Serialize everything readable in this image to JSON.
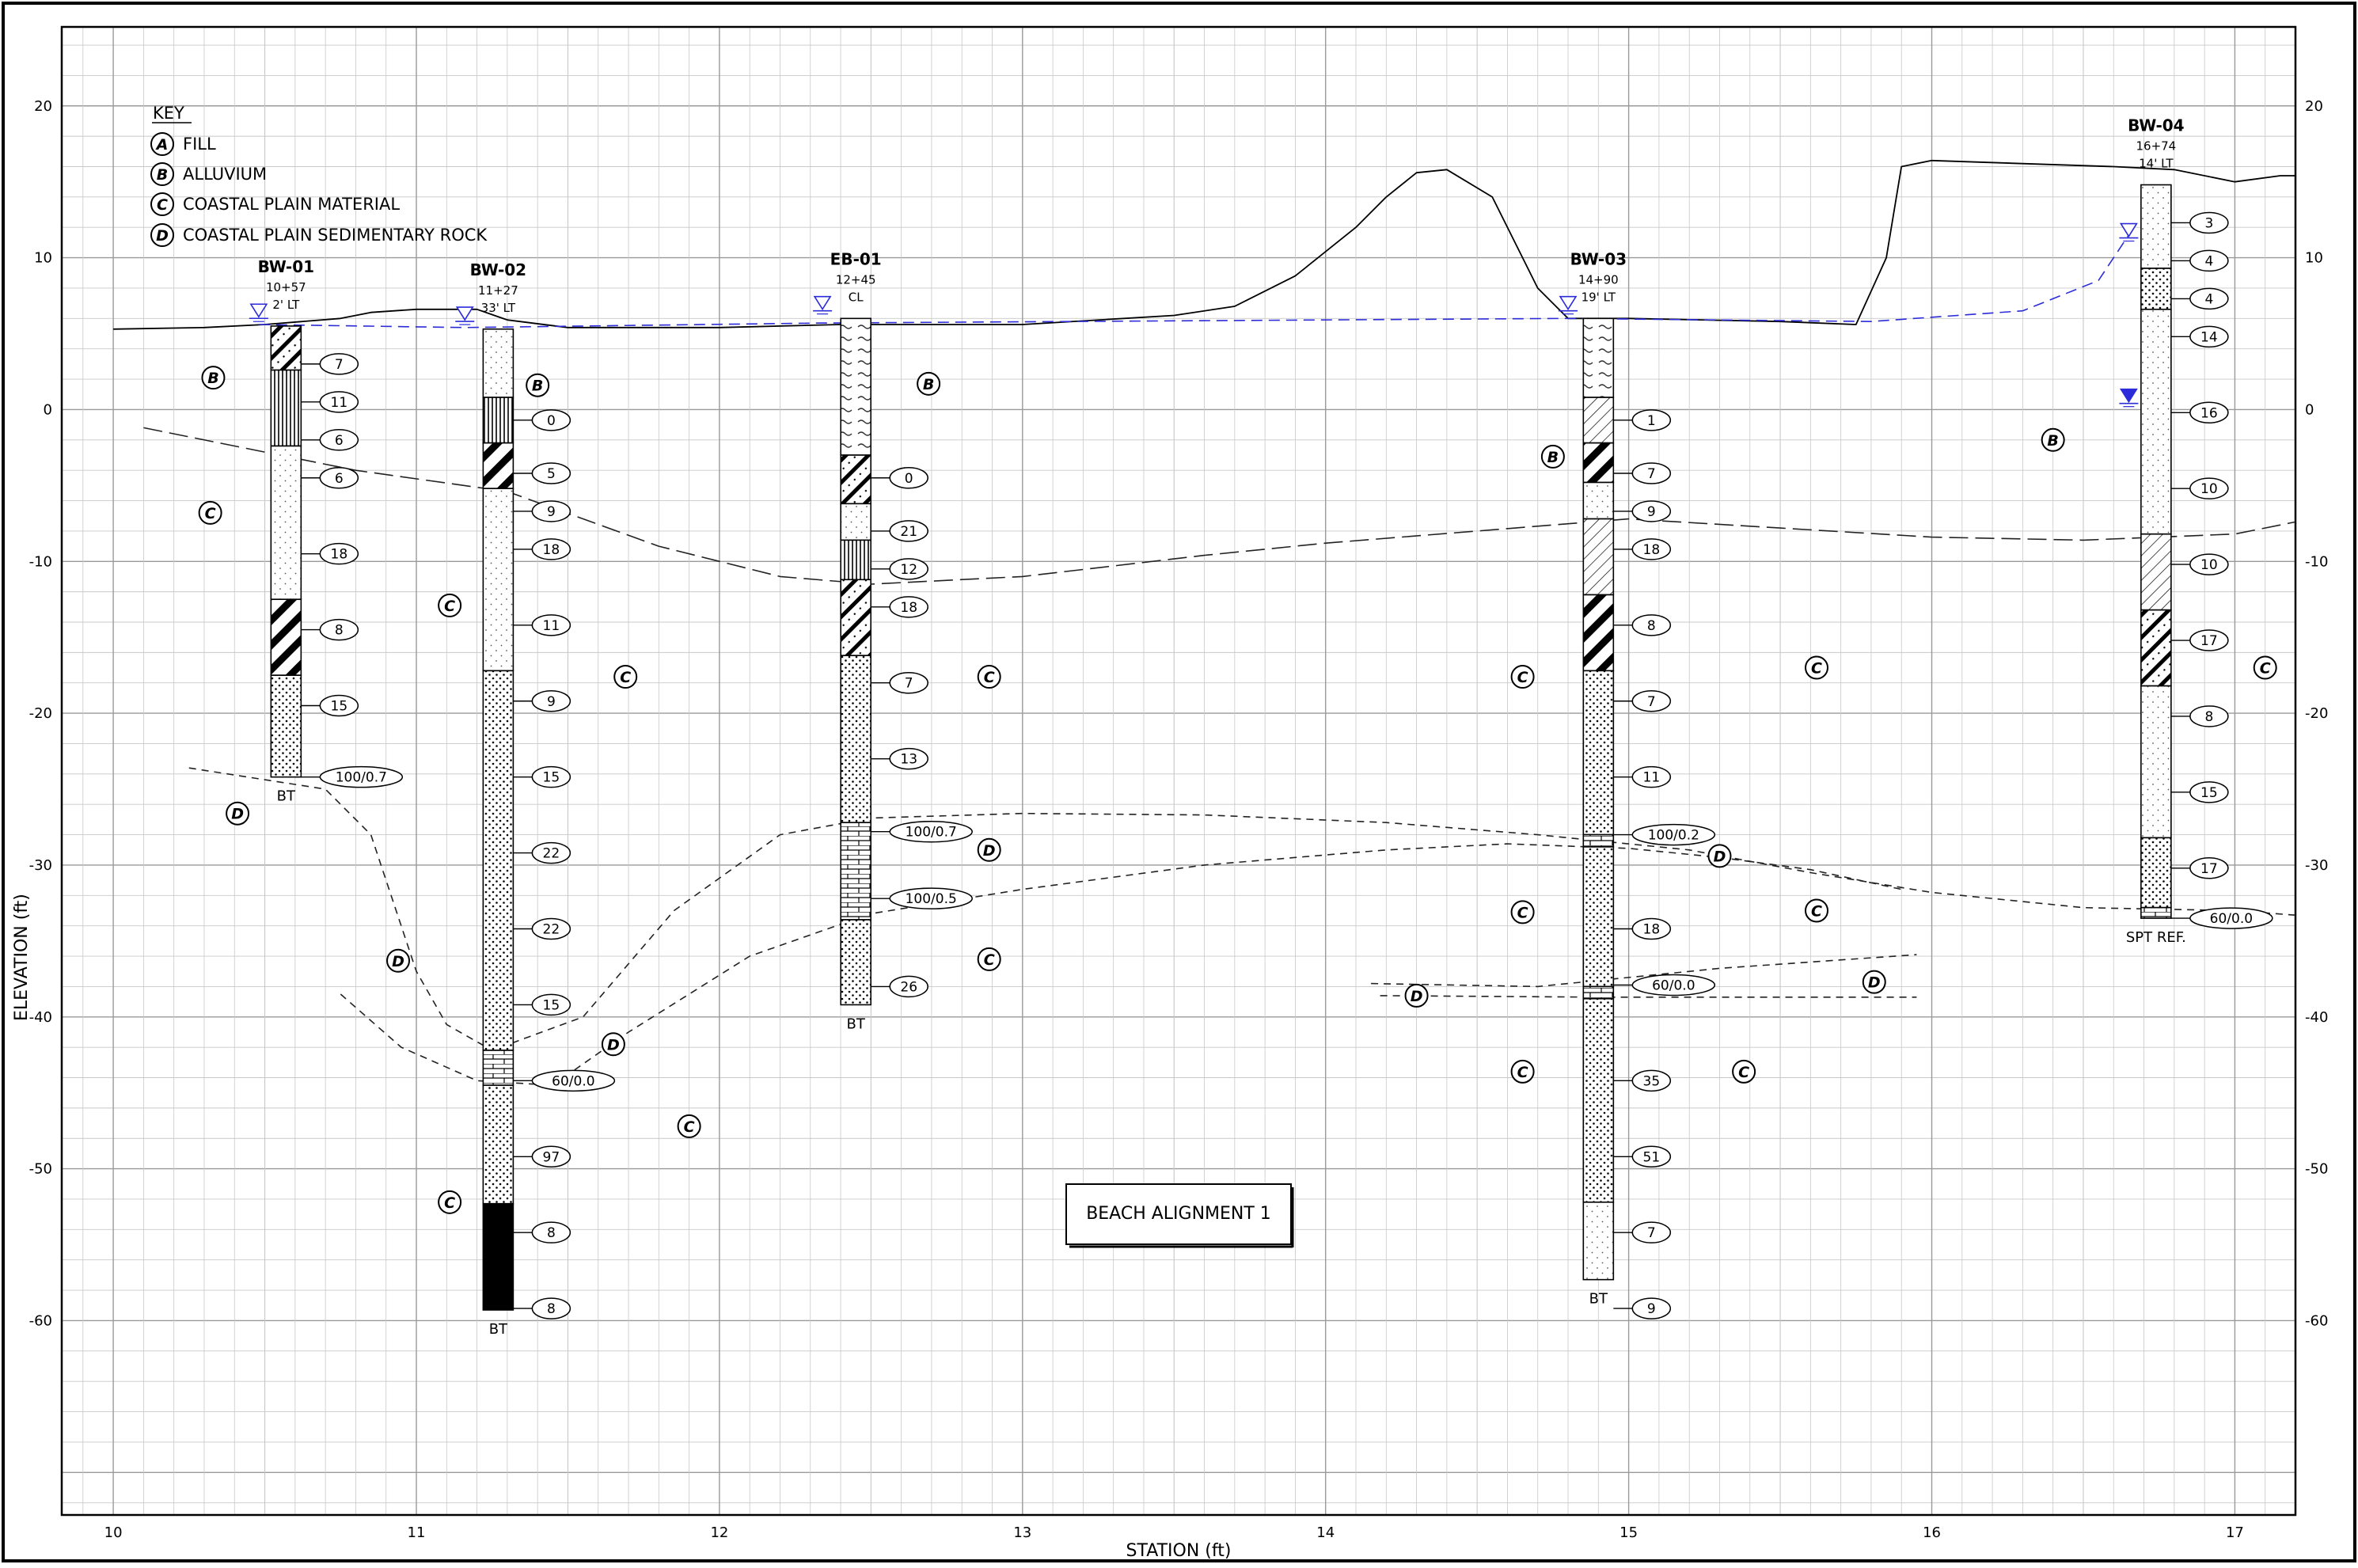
{
  "key": {
    "title": "KEY",
    "items": [
      {
        "letter": "A",
        "label": "FILL"
      },
      {
        "letter": "B",
        "label": "ALLUVIUM"
      },
      {
        "letter": "C",
        "label": "COASTAL PLAIN MATERIAL"
      },
      {
        "letter": "D",
        "label": "COASTAL PLAIN SEDIMENTARY ROCK"
      }
    ]
  },
  "axes": {
    "xlabel": "STATION (ft)",
    "ylabel": "ELEVATION (ft)",
    "xticks": [
      "10",
      "11",
      "12",
      "13",
      "14",
      "15",
      "16",
      "17"
    ],
    "yticks": [
      "20",
      "10",
      "0",
      "-10",
      "-20",
      "-30",
      "-40",
      "-50",
      "-60"
    ]
  },
  "title_box": "BEACH ALIGNMENT 1",
  "colors": {
    "line": "#000000",
    "water_table": "#2b2bd9",
    "grid": "#c8c8c8"
  },
  "chart_data": {
    "type": "profile",
    "xlim": [
      9.83,
      17.2
    ],
    "ylim": [
      -72.8,
      25.2
    ],
    "ground_surface": [
      [
        10.0,
        5.3
      ],
      [
        10.3,
        5.4
      ],
      [
        10.5,
        5.6
      ],
      [
        10.75,
        6.0
      ],
      [
        10.85,
        6.4
      ],
      [
        11.0,
        6.6
      ],
      [
        11.2,
        6.6
      ],
      [
        11.3,
        5.9
      ],
      [
        11.5,
        5.4
      ],
      [
        12.0,
        5.4
      ],
      [
        12.4,
        5.6
      ],
      [
        12.6,
        5.6
      ],
      [
        13.0,
        5.6
      ],
      [
        13.5,
        6.2
      ],
      [
        13.7,
        6.8
      ],
      [
        13.9,
        8.8
      ],
      [
        14.1,
        12.0
      ],
      [
        14.2,
        14.0
      ],
      [
        14.3,
        15.6
      ],
      [
        14.4,
        15.8
      ],
      [
        14.55,
        14.0
      ],
      [
        14.7,
        8.0
      ],
      [
        14.8,
        6.0
      ],
      [
        15.0,
        6.0
      ],
      [
        15.5,
        5.8
      ],
      [
        15.75,
        5.6
      ],
      [
        15.85,
        10.0
      ],
      [
        15.9,
        16.0
      ],
      [
        16.0,
        16.4
      ],
      [
        16.3,
        16.2
      ],
      [
        16.6,
        16.0
      ],
      [
        16.8,
        15.8
      ],
      [
        17.0,
        15.0
      ],
      [
        17.15,
        15.4
      ],
      [
        17.2,
        15.4
      ]
    ],
    "water_table": [
      [
        10.48,
        5.6
      ],
      [
        11.16,
        5.4
      ],
      [
        12.34,
        5.7
      ],
      [
        14.8,
        6.0
      ],
      [
        15.8,
        5.8
      ],
      [
        16.3,
        6.5
      ],
      [
        16.55,
        8.5
      ],
      [
        16.65,
        11.5
      ]
    ],
    "unit_boundaries": [
      {
        "dash": "long",
        "points": [
          [
            10.1,
            -1.2
          ],
          [
            10.8,
            -4.0
          ],
          [
            11.3,
            -5.4
          ],
          [
            11.8,
            -9.0
          ],
          [
            12.2,
            -11.0
          ],
          [
            12.5,
            -11.5
          ],
          [
            13.0,
            -11.0
          ],
          [
            13.6,
            -9.6
          ],
          [
            14.0,
            -8.8
          ],
          [
            14.5,
            -8.0
          ],
          [
            15.0,
            -7.2
          ],
          [
            15.5,
            -7.8
          ],
          [
            16.0,
            -8.4
          ],
          [
            16.5,
            -8.6
          ],
          [
            17.0,
            -8.2
          ],
          [
            17.2,
            -7.4
          ]
        ]
      },
      {
        "dash": "short",
        "points": [
          [
            10.25,
            -23.6
          ],
          [
            10.7,
            -25.0
          ],
          [
            10.85,
            -28.0
          ],
          [
            11.0,
            -37.0
          ],
          [
            11.1,
            -40.5
          ],
          [
            11.25,
            -42.2
          ],
          [
            11.55,
            -40.0
          ],
          [
            11.85,
            -33.0
          ],
          [
            12.2,
            -28.0
          ],
          [
            12.5,
            -26.9
          ],
          [
            13.0,
            -26.6
          ],
          [
            13.6,
            -26.7
          ],
          [
            14.2,
            -27.2
          ],
          [
            14.7,
            -28.0
          ],
          [
            15.2,
            -29.0
          ],
          [
            15.6,
            -30.5
          ],
          [
            16.0,
            -31.8
          ],
          [
            16.5,
            -32.8
          ],
          [
            17.0,
            -33.0
          ],
          [
            17.2,
            -33.3
          ]
        ]
      },
      {
        "dash": "short",
        "points": [
          [
            10.75,
            -38.5
          ],
          [
            10.95,
            -42.0
          ],
          [
            11.2,
            -44.2
          ],
          [
            11.45,
            -44.5
          ],
          [
            11.7,
            -41.0
          ],
          [
            12.1,
            -36.0
          ],
          [
            12.5,
            -33.2
          ],
          [
            13.0,
            -31.6
          ],
          [
            13.6,
            -30.0
          ],
          [
            14.2,
            -29.0
          ],
          [
            14.6,
            -28.6
          ],
          [
            15.0,
            -28.9
          ],
          [
            15.3,
            -29.5
          ],
          [
            15.6,
            -30.3
          ],
          [
            15.9,
            -31.6
          ]
        ]
      },
      {
        "dash": "short",
        "points": [
          [
            14.15,
            -37.8
          ],
          [
            14.7,
            -38.0
          ],
          [
            15.3,
            -36.8
          ],
          [
            15.95,
            -35.9
          ]
        ]
      },
      {
        "dash": "short",
        "points": [
          [
            14.18,
            -38.6
          ],
          [
            14.9,
            -38.7
          ],
          [
            15.95,
            -38.7
          ]
        ]
      }
    ],
    "unit_labels": [
      {
        "letter": "B",
        "x": 10.33,
        "y": 2.1
      },
      {
        "letter": "C",
        "x": 10.32,
        "y": -6.8
      },
      {
        "letter": "D",
        "x": 10.41,
        "y": -26.6
      },
      {
        "letter": "B",
        "x": 11.4,
        "y": 1.6
      },
      {
        "letter": "C",
        "x": 11.11,
        "y": -12.9
      },
      {
        "letter": "D",
        "x": 10.94,
        "y": -36.3
      },
      {
        "letter": "D",
        "x": 11.65,
        "y": -41.8
      },
      {
        "letter": "C",
        "x": 11.11,
        "y": -52.2
      },
      {
        "letter": "C",
        "x": 11.69,
        "y": -17.6
      },
      {
        "letter": "C",
        "x": 11.9,
        "y": -47.2
      },
      {
        "letter": "B",
        "x": 12.69,
        "y": 1.7
      },
      {
        "letter": "C",
        "x": 12.89,
        "y": -17.6
      },
      {
        "letter": "D",
        "x": 12.89,
        "y": -29.0
      },
      {
        "letter": "C",
        "x": 12.89,
        "y": -36.2
      },
      {
        "letter": "B",
        "x": 14.75,
        "y": -3.1
      },
      {
        "letter": "C",
        "x": 14.65,
        "y": -17.6
      },
      {
        "letter": "C",
        "x": 14.65,
        "y": -33.1
      },
      {
        "letter": "C",
        "x": 14.65,
        "y": -43.6
      },
      {
        "letter": "D",
        "x": 14.3,
        "y": -38.6
      },
      {
        "letter": "D",
        "x": 15.3,
        "y": -29.4
      },
      {
        "letter": "C",
        "x": 15.62,
        "y": -17.0
      },
      {
        "letter": "C",
        "x": 15.62,
        "y": -33.0
      },
      {
        "letter": "C",
        "x": 15.38,
        "y": -43.6
      },
      {
        "letter": "D",
        "x": 15.81,
        "y": -37.7
      },
      {
        "letter": "B",
        "x": 16.4,
        "y": -2.0
      },
      {
        "letter": "C",
        "x": 17.1,
        "y": -17.0
      }
    ],
    "borings": [
      {
        "name": "BW-01",
        "station": "10+57",
        "offset": "2' LT",
        "x": 10.57,
        "top": 5.5,
        "bottom": -24.2,
        "end_label": "BT",
        "wt": 10.48,
        "layers": [
          {
            "from": 5.5,
            "to": 2.6,
            "pattern": "hatch-dot"
          },
          {
            "from": 2.6,
            "to": -2.4,
            "pattern": "vert"
          },
          {
            "from": -2.4,
            "to": -12.5,
            "pattern": "dots-light"
          },
          {
            "from": -12.5,
            "to": -17.5,
            "pattern": "hatch-bold"
          },
          {
            "from": -17.5,
            "to": -24.2,
            "pattern": "dots"
          }
        ],
        "spt": [
          {
            "y": 3.0,
            "v": "7"
          },
          {
            "y": 0.5,
            "v": "11"
          },
          {
            "y": -2.0,
            "v": "6"
          },
          {
            "y": -4.5,
            "v": "6"
          },
          {
            "y": -9.5,
            "v": "18"
          },
          {
            "y": -14.5,
            "v": "8"
          },
          {
            "y": -19.5,
            "v": "15"
          },
          {
            "y": -24.2,
            "v": "100/0.7"
          }
        ]
      },
      {
        "name": "BW-02",
        "station": "11+27",
        "offset": "33' LT",
        "x": 11.27,
        "top": 5.3,
        "bottom": -59.3,
        "end_label": "BT",
        "wt": 11.16,
        "layers": [
          {
            "from": 5.3,
            "to": 0.8,
            "pattern": "dots-light"
          },
          {
            "from": 0.8,
            "to": -2.2,
            "pattern": "vert"
          },
          {
            "from": -2.2,
            "to": -5.2,
            "pattern": "hatch-bold"
          },
          {
            "from": -5.2,
            "to": -17.2,
            "pattern": "dots-light"
          },
          {
            "from": -17.2,
            "to": -42.2,
            "pattern": "dots"
          },
          {
            "from": -42.2,
            "to": -44.5,
            "pattern": "brick"
          },
          {
            "from": -44.5,
            "to": -52.3,
            "pattern": "dots"
          },
          {
            "from": -52.3,
            "to": -59.3,
            "pattern": "solid"
          }
        ],
        "spt": [
          {
            "y": -0.7,
            "v": "0"
          },
          {
            "y": -4.2,
            "v": "5"
          },
          {
            "y": -6.7,
            "v": "9"
          },
          {
            "y": -9.2,
            "v": "18"
          },
          {
            "y": -14.2,
            "v": "11"
          },
          {
            "y": -19.2,
            "v": "9"
          },
          {
            "y": -24.2,
            "v": "15"
          },
          {
            "y": -29.2,
            "v": "22"
          },
          {
            "y": -34.2,
            "v": "22"
          },
          {
            "y": -39.2,
            "v": "15"
          },
          {
            "y": -44.2,
            "v": "60/0.0"
          },
          {
            "y": -49.2,
            "v": "97"
          },
          {
            "y": -54.2,
            "v": "8"
          },
          {
            "y": -59.2,
            "v": "8"
          }
        ]
      },
      {
        "name": "EB-01",
        "station": "12+45",
        "offset": "CL",
        "x": 12.45,
        "top": 6.0,
        "bottom": -39.2,
        "end_label": "BT",
        "wt": 12.34,
        "layers": [
          {
            "from": 6.0,
            "to": -3.0,
            "pattern": "wavy"
          },
          {
            "from": -3.0,
            "to": -6.2,
            "pattern": "hatch-dot"
          },
          {
            "from": -6.2,
            "to": -8.6,
            "pattern": "dots-light"
          },
          {
            "from": -8.6,
            "to": -11.2,
            "pattern": "vert"
          },
          {
            "from": -11.2,
            "to": -16.2,
            "pattern": "hatch-dot"
          },
          {
            "from": -16.2,
            "to": -27.2,
            "pattern": "dots"
          },
          {
            "from": -27.2,
            "to": -33.6,
            "pattern": "brick"
          },
          {
            "from": -33.6,
            "to": -39.2,
            "pattern": "dots"
          }
        ],
        "spt": [
          {
            "y": -4.5,
            "v": "0"
          },
          {
            "y": -8.0,
            "v": "21"
          },
          {
            "y": -10.5,
            "v": "12"
          },
          {
            "y": -13.0,
            "v": "18"
          },
          {
            "y": -18.0,
            "v": "7"
          },
          {
            "y": -23.0,
            "v": "13"
          },
          {
            "y": -27.8,
            "v": "100/0.7"
          },
          {
            "y": -32.2,
            "v": "100/0.5"
          },
          {
            "y": -38.0,
            "v": "26"
          }
        ]
      },
      {
        "name": "BW-03",
        "station": "14+90",
        "offset": "19' LT",
        "x": 14.9,
        "top": 6.0,
        "bottom": -57.3,
        "end_label": "BT",
        "wt": 14.8,
        "layers": [
          {
            "from": 6.0,
            "to": 0.8,
            "pattern": "wavy"
          },
          {
            "from": 0.8,
            "to": -2.2,
            "pattern": "hatch-thin"
          },
          {
            "from": -2.2,
            "to": -4.8,
            "pattern": "hatch-bold"
          },
          {
            "from": -4.8,
            "to": -7.2,
            "pattern": "dots-light"
          },
          {
            "from": -7.2,
            "to": -12.2,
            "pattern": "hatch-thin"
          },
          {
            "from": -12.2,
            "to": -17.2,
            "pattern": "hatch-bold"
          },
          {
            "from": -17.2,
            "to": -28.0,
            "pattern": "dots"
          },
          {
            "from": -28.0,
            "to": -28.8,
            "pattern": "brick"
          },
          {
            "from": -28.8,
            "to": -38.0,
            "pattern": "dots"
          },
          {
            "from": -38.0,
            "to": -38.8,
            "pattern": "brick"
          },
          {
            "from": -38.8,
            "to": -52.2,
            "pattern": "dots"
          },
          {
            "from": -52.2,
            "to": -57.3,
            "pattern": "dots-light"
          }
        ],
        "spt": [
          {
            "y": -0.7,
            "v": "1"
          },
          {
            "y": -4.2,
            "v": "7"
          },
          {
            "y": -6.7,
            "v": "9"
          },
          {
            "y": -9.2,
            "v": "18"
          },
          {
            "y": -14.2,
            "v": "8"
          },
          {
            "y": -19.2,
            "v": "7"
          },
          {
            "y": -24.2,
            "v": "11"
          },
          {
            "y": -28.0,
            "v": "100/0.2"
          },
          {
            "y": -34.2,
            "v": "18"
          },
          {
            "y": -37.9,
            "v": "60/0.0"
          },
          {
            "y": -44.2,
            "v": "35"
          },
          {
            "y": -49.2,
            "v": "51"
          },
          {
            "y": -54.2,
            "v": "7"
          },
          {
            "y": -59.2,
            "v": "9"
          }
        ]
      },
      {
        "name": "BW-04",
        "station": "16+74",
        "offset": "14' LT",
        "x": 16.74,
        "top": 14.8,
        "bottom": -33.5,
        "end_label": "SPT REF.",
        "wt": 16.65,
        "layers": [
          {
            "from": 14.8,
            "to": 9.3,
            "pattern": "dots-light"
          },
          {
            "from": 9.3,
            "to": 6.6,
            "pattern": "dots"
          },
          {
            "from": 6.6,
            "to": -8.2,
            "pattern": "dots-light"
          },
          {
            "from": -8.2,
            "to": -13.2,
            "pattern": "hatch-thin"
          },
          {
            "from": -13.2,
            "to": -18.2,
            "pattern": "hatch-dot"
          },
          {
            "from": -18.2,
            "to": -28.2,
            "pattern": "dots-light"
          },
          {
            "from": -28.2,
            "to": -32.8,
            "pattern": "dots"
          },
          {
            "from": -32.8,
            "to": -33.5,
            "pattern": "brick"
          }
        ],
        "spt": [
          {
            "y": 12.3,
            "v": "3"
          },
          {
            "y": 9.8,
            "v": "4"
          },
          {
            "y": 7.3,
            "v": "4"
          },
          {
            "y": 4.8,
            "v": "14"
          },
          {
            "y": -0.2,
            "v": "16"
          },
          {
            "y": -5.2,
            "v": "10"
          },
          {
            "y": -10.2,
            "v": "10"
          },
          {
            "y": -15.2,
            "v": "17"
          },
          {
            "y": -20.2,
            "v": "8"
          },
          {
            "y": -25.2,
            "v": "15"
          },
          {
            "y": -30.2,
            "v": "17"
          },
          {
            "y": -33.5,
            "v": "60/0.0"
          }
        ]
      }
    ],
    "measured_water": {
      "x": 16.65,
      "y": 0.3
    }
  }
}
